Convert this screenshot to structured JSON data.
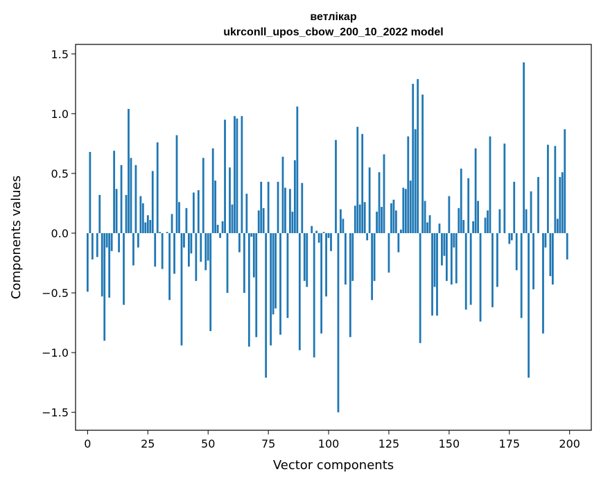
{
  "chart_data": {
    "type": "bar",
    "title": "ветлікар",
    "subtitle": "ukrconll_upos_cbow_200_10_2022 model",
    "xlabel": "Vector components",
    "ylabel": "Components values",
    "xlim": [
      -5,
      209
    ],
    "ylim": [
      -1.65,
      1.58
    ],
    "xticks": [
      0,
      25,
      50,
      75,
      100,
      125,
      150,
      175,
      200
    ],
    "xtick_labels": [
      "0",
      "25",
      "50",
      "75",
      "100",
      "125",
      "150",
      "175",
      "200"
    ],
    "yticks": [
      -1.5,
      -1.0,
      -0.5,
      0.0,
      0.5,
      1.0,
      1.5
    ],
    "ytick_labels": [
      "−1.5",
      "−1.0",
      "−0.5",
      "0.0",
      "0.5",
      "1.0",
      "1.5"
    ],
    "grid": false,
    "bar_color": "#1f77b4",
    "x_start": 0,
    "values": [
      -0.49,
      0.68,
      -0.22,
      0.0,
      -0.2,
      0.32,
      -0.53,
      -0.9,
      -0.12,
      -0.54,
      -0.15,
      0.69,
      0.37,
      -0.16,
      0.57,
      -0.6,
      0.32,
      1.04,
      0.63,
      -0.27,
      0.57,
      -0.12,
      0.31,
      0.25,
      0.09,
      0.15,
      0.11,
      0.52,
      -0.28,
      0.76,
      0.01,
      -0.3,
      0.0,
      0.01,
      -0.56,
      0.16,
      -0.34,
      0.82,
      0.26,
      -0.94,
      -0.12,
      0.21,
      -0.28,
      -0.17,
      0.34,
      -0.4,
      0.36,
      -0.24,
      0.63,
      -0.31,
      -0.23,
      -0.82,
      0.71,
      0.44,
      0.07,
      -0.04,
      0.1,
      0.95,
      -0.5,
      0.55,
      0.24,
      0.98,
      0.96,
      -0.16,
      0.98,
      -0.5,
      0.33,
      -0.95,
      -0.03,
      -0.37,
      -0.87,
      0.19,
      0.43,
      0.21,
      -1.21,
      0.43,
      -0.94,
      -0.68,
      -0.63,
      0.43,
      -0.85,
      0.64,
      0.38,
      -0.71,
      0.37,
      0.18,
      0.61,
      1.06,
      -0.98,
      0.42,
      -0.4,
      -0.45,
      0.0,
      0.06,
      -1.04,
      0.02,
      -0.08,
      -0.84,
      0.01,
      -0.53,
      -0.04,
      -0.15,
      0.0,
      0.78,
      -1.5,
      0.2,
      0.12,
      -0.43,
      0.0,
      -0.87,
      -0.4,
      0.23,
      0.89,
      0.24,
      0.83,
      0.26,
      -0.06,
      0.55,
      -0.56,
      -0.4,
      0.18,
      0.51,
      0.22,
      0.66,
      0.0,
      -0.33,
      0.25,
      0.28,
      0.19,
      -0.16,
      0.03,
      0.38,
      0.37,
      0.81,
      0.44,
      1.25,
      0.87,
      1.29,
      -0.92,
      1.16,
      0.27,
      0.09,
      0.15,
      -0.69,
      -0.45,
      -0.69,
      0.08,
      -0.27,
      -0.19,
      -0.4,
      0.31,
      -0.43,
      -0.12,
      -0.42,
      0.21,
      0.54,
      0.11,
      -0.64,
      0.46,
      -0.6,
      0.1,
      0.71,
      0.27,
      -0.74,
      0.0,
      0.13,
      0.19,
      0.81,
      -0.62,
      0.0,
      -0.45,
      0.2,
      0.0,
      0.75,
      0.0,
      -0.09,
      -0.06,
      0.43,
      -0.31,
      0.0,
      -0.71,
      1.43,
      0.2,
      -1.21,
      0.35,
      -0.47,
      0.0,
      0.47,
      0.0,
      -0.84,
      -0.12,
      0.74,
      -0.36,
      -0.43,
      0.73,
      0.12,
      0.47,
      0.51,
      0.87,
      -0.22
    ]
  }
}
